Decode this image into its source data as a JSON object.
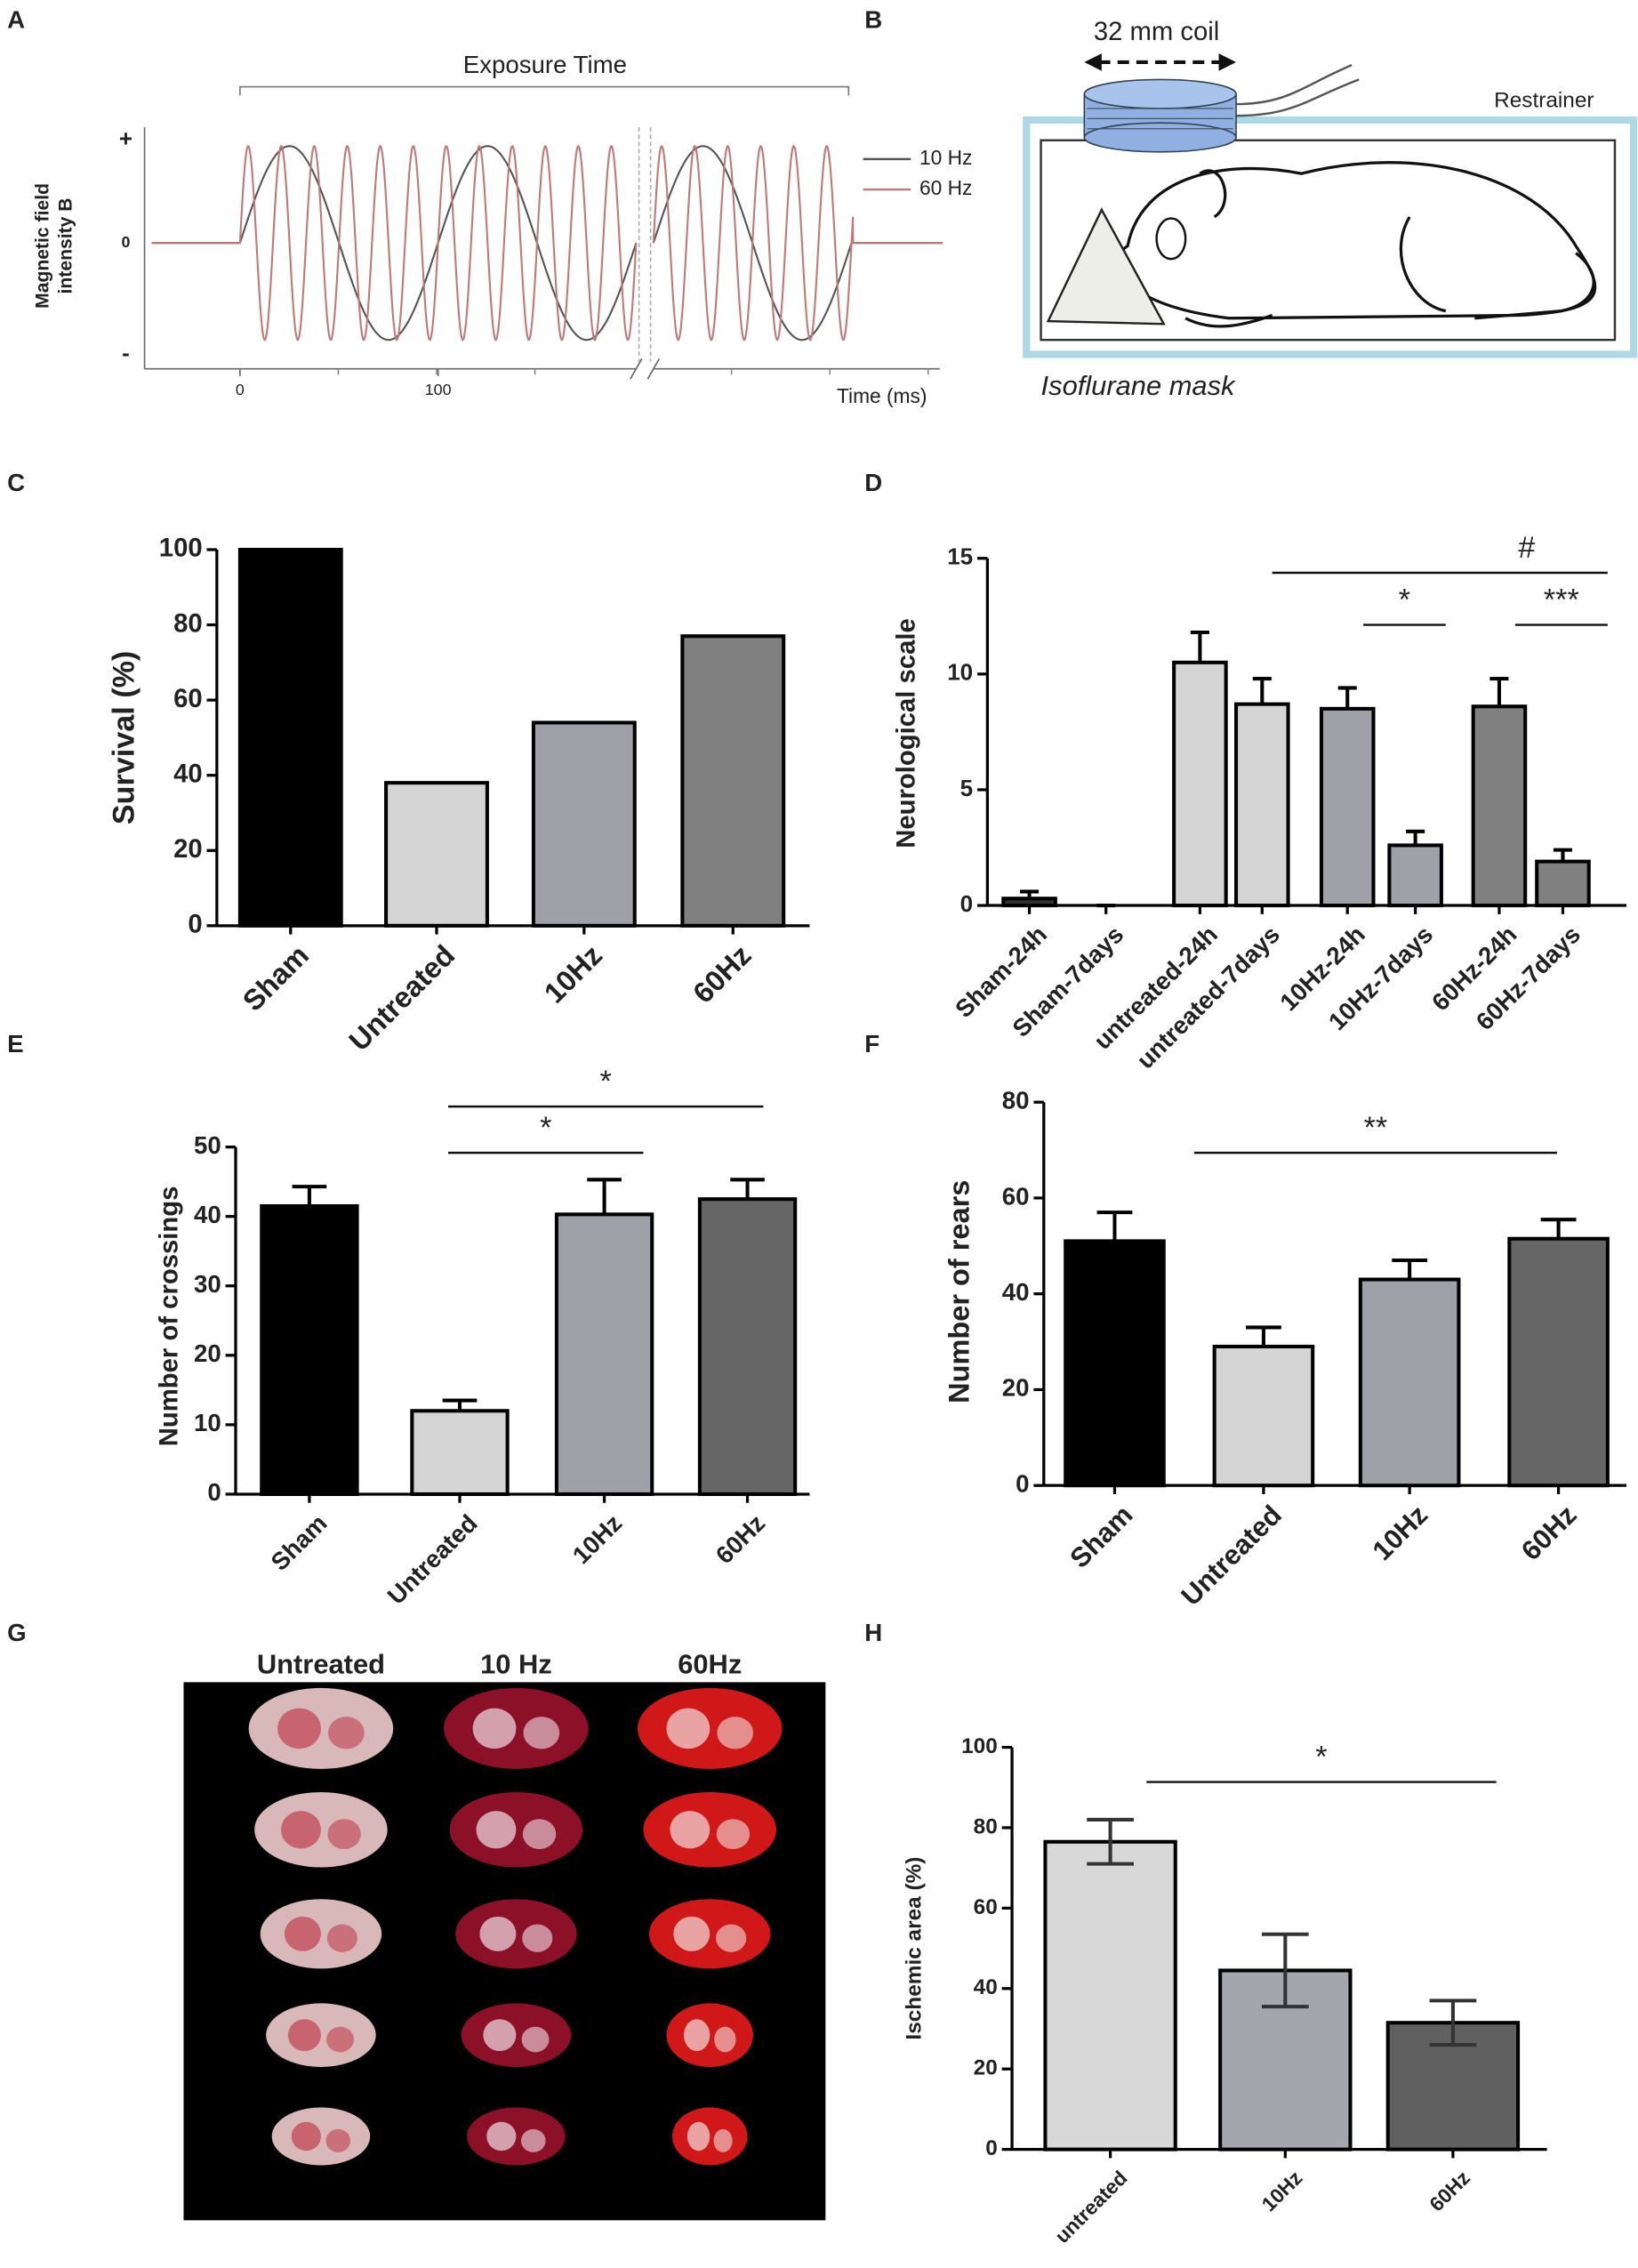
{
  "panel_labels": [
    "A",
    "B",
    "C",
    "D",
    "E",
    "F",
    "G",
    "H"
  ],
  "panel_a": {
    "title": "Exposure Time",
    "y_label_lines": [
      "Magnetic field",
      "intensity B"
    ],
    "y_ticks": [
      "+",
      "0",
      "-"
    ],
    "x_ticks": [
      0,
      100
    ],
    "x_label": "Time (ms)",
    "legend": [
      {
        "name": "10 Hz",
        "color": "#555555"
      },
      {
        "name": "60 Hz",
        "color": "#c07878"
      }
    ]
  },
  "panel_b": {
    "coil": "32 mm coil",
    "restrainer": "Restrainer",
    "mask": "Isoflurane mask"
  },
  "panel_g": {
    "columns": [
      "Untreated",
      "10 Hz",
      "60Hz"
    ]
  },
  "chart_data": [
    {
      "type": "bar",
      "y_label": "Survival (%)",
      "categories": [
        "Sham",
        "Untreated",
        "10Hz",
        "60Hz"
      ],
      "values": [
        100,
        38,
        54,
        77
      ],
      "colors": [
        "#000000",
        "#d4d4d4",
        "#a0a0a8",
        "#808080"
      ],
      "ylim": [
        0,
        100
      ],
      "yticks": [
        0,
        20,
        40,
        60,
        80,
        100
      ]
    },
    {
      "type": "bar",
      "y_label": "Neurological scale",
      "categories": [
        "Sham-24h",
        "Sham-7days",
        "untreated-24h",
        "untreated-7days",
        "10Hz-24h",
        "10Hz-7days",
        "60Hz-24h",
        "60Hz-7days"
      ],
      "values": [
        0.3,
        0,
        10.5,
        8.7,
        8.5,
        2.6,
        8.6,
        1.9
      ],
      "errors": [
        0.3,
        0,
        1.3,
        1.1,
        0.9,
        0.6,
        1.2,
        0.5
      ],
      "colors": [
        "#333333",
        "#333333",
        "#d4d4d4",
        "#d4d4d4",
        "#a0a0a8",
        "#a0a0a8",
        "#808080",
        "#808080"
      ],
      "ylim": [
        0,
        15
      ],
      "yticks": [
        0,
        5,
        10,
        15
      ],
      "annotations": [
        "#",
        "*",
        "***"
      ]
    },
    {
      "type": "bar",
      "y_label": "Number of crossings",
      "categories": [
        "Sham",
        "Untreated",
        "10Hz",
        "60Hz"
      ],
      "values": [
        41.5,
        12,
        40.3,
        42.5
      ],
      "errors": [
        2.8,
        1.5,
        5,
        2.8
      ],
      "colors": [
        "#000000",
        "#d4d4d4",
        "#a0a0a8",
        "#666666"
      ],
      "ylim": [
        0,
        50
      ],
      "yticks": [
        0,
        10,
        20,
        30,
        40,
        50
      ],
      "annotations": [
        "*",
        "*"
      ]
    },
    {
      "type": "bar",
      "y_label": "Number of rears",
      "categories": [
        "Sham",
        "Untreated",
        "10Hz",
        "60Hz"
      ],
      "values": [
        51,
        29,
        43,
        51.5
      ],
      "errors": [
        6,
        4,
        4,
        4
      ],
      "colors": [
        "#000000",
        "#d4d4d4",
        "#a0a0a8",
        "#666666"
      ],
      "ylim": [
        0,
        80
      ],
      "yticks": [
        0,
        20,
        40,
        60,
        80
      ],
      "annotations": [
        "**"
      ]
    },
    {
      "type": "bar",
      "y_label": "Ischemic area (%)",
      "categories": [
        "untreated",
        "10Hz",
        "60Hz"
      ],
      "values": [
        76.5,
        44.5,
        31.5
      ],
      "errors": [
        5.5,
        9,
        5.5
      ],
      "colors": [
        "#d8d8d8",
        "#a5a5ae",
        "#606060"
      ],
      "ylim": [
        0,
        100
      ],
      "yticks": [
        0,
        20,
        40,
        60,
        80,
        100
      ],
      "annotations": [
        "*"
      ]
    }
  ]
}
